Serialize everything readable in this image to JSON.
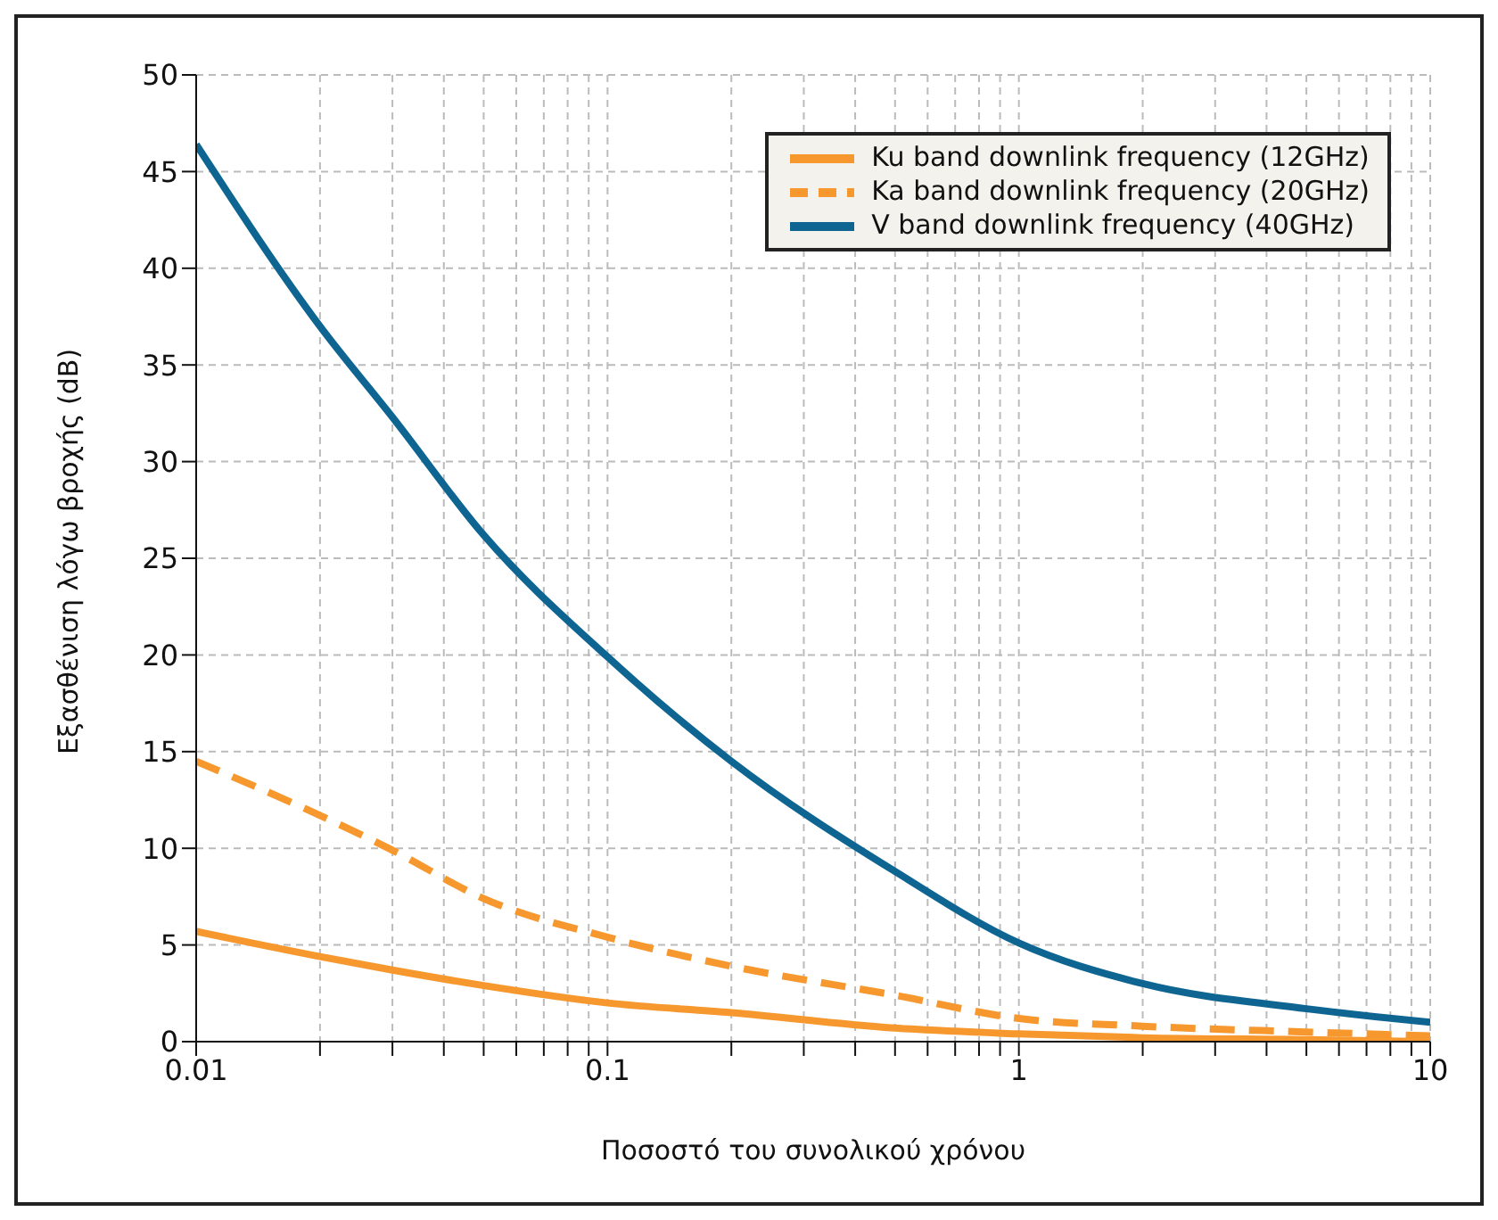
{
  "chart_data": {
    "type": "line",
    "xlabel": "Ποσοστό του συνολικού χρόνου",
    "ylabel": "Εξασθένιση λόγω βροχής (dB)",
    "log": "x",
    "grid": true,
    "legend": "top right",
    "xlim": [
      0.01,
      10
    ],
    "ylim": [
      0,
      50
    ],
    "xticks": [
      0.01,
      {
        "value": 0.02,
        "label": null
      },
      {
        "value": 0.03,
        "label": null
      },
      {
        "value": 0.04,
        "label": null
      },
      {
        "value": 0.05,
        "label": null
      },
      {
        "value": 0.06,
        "label": null
      },
      {
        "value": 0.07,
        "label": null
      },
      {
        "value": 0.08,
        "label": null
      },
      {
        "value": 0.09,
        "label": null
      },
      0.1,
      {
        "value": 0.2,
        "label": null
      },
      {
        "value": 0.3,
        "label": null
      },
      {
        "value": 0.4,
        "label": null
      },
      {
        "value": 0.5,
        "label": null
      },
      {
        "value": 0.6,
        "label": null
      },
      {
        "value": 0.7,
        "label": null
      },
      {
        "value": 0.8,
        "label": null
      },
      {
        "value": 0.9,
        "label": null
      },
      1,
      {
        "value": 2,
        "label": null
      },
      {
        "value": 3,
        "label": null
      },
      {
        "value": 4,
        "label": null
      },
      {
        "value": 5,
        "label": null
      },
      {
        "value": 6,
        "label": null
      },
      {
        "value": 7,
        "label": null
      },
      {
        "value": 8,
        "label": null
      },
      {
        "value": 9,
        "label": null
      },
      10
    ],
    "yticks": [
      0,
      5,
      10,
      15,
      20,
      25,
      30,
      35,
      40,
      45,
      50
    ],
    "x": [
      0.01,
      0.02,
      0.03,
      0.05,
      0.1,
      0.2,
      0.5,
      1,
      2,
      5,
      10
    ],
    "series": [
      {
        "name": "Ku band downlink frequency (12GHz)",
        "color": "#f7982f",
        "line_style": "solid",
        "values": [
          5.7,
          4.4,
          3.7,
          2.9,
          2.0,
          1.5,
          0.7,
          0.4,
          0.2,
          0.1,
          0
        ]
      },
      {
        "name": "Ka band downlink frequency (20GHz)",
        "color": "#f7982f",
        "line_style": "dashed",
        "values": [
          14.5,
          11.7,
          9.9,
          7.4,
          5.4,
          3.9,
          2.4,
          1.2,
          0.8,
          0.5,
          0.3
        ]
      },
      {
        "name": "V band downlink frequency (40GHz)",
        "color": "#0f6592",
        "line_style": "solid",
        "values": [
          46.4,
          37,
          32.3,
          26.2,
          19.9,
          14.5,
          8.8,
          5.1,
          3.0,
          1.7,
          1.0
        ]
      }
    ]
  }
}
